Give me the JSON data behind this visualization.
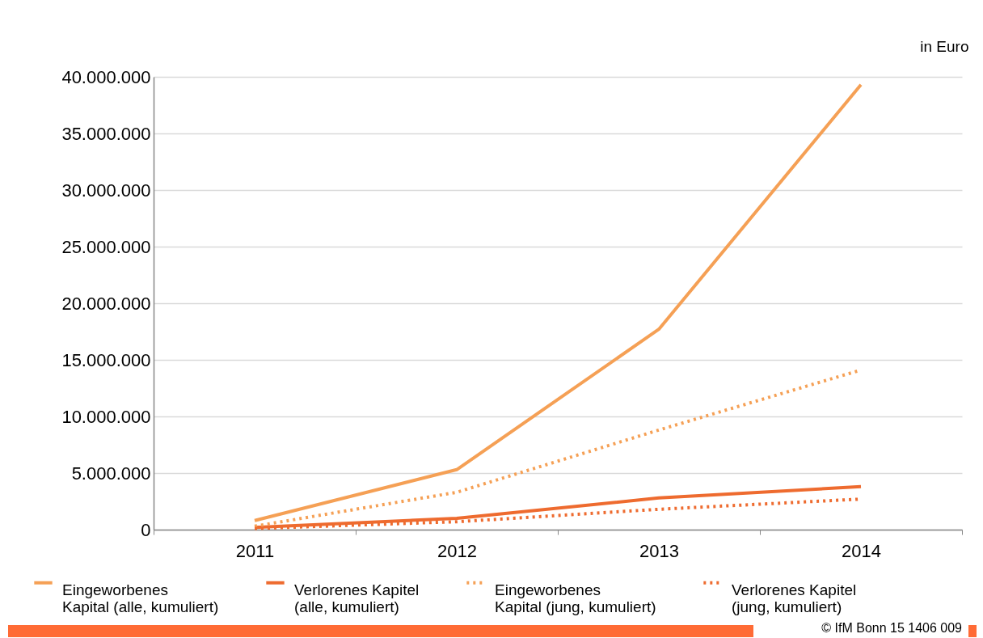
{
  "chart_data": {
    "type": "line",
    "ylabel": "in Euro",
    "categories": [
      "2011",
      "2012",
      "2013",
      "2014"
    ],
    "series": [
      {
        "name": "Eingeworbenes Kapital (alle, kumuliert)",
        "color": "#f5a055",
        "line_style": "solid",
        "values": [
          800000,
          5300000,
          17700000,
          39300000
        ]
      },
      {
        "name": "Verlorenes Kapitel (alle, kumuliert)",
        "color": "#ee6b2f",
        "line_style": "solid",
        "values": [
          200000,
          1000000,
          2800000,
          3800000
        ]
      },
      {
        "name": "Eingeworbenes Kapital (jung, kumuliert)",
        "color": "#f5a055",
        "line_style": "dotted",
        "values": [
          300000,
          3300000,
          8800000,
          14100000
        ]
      },
      {
        "name": "Verlorenes Kapitel (jung, kumuliert)",
        "color": "#ee6b2f",
        "line_style": "dotted",
        "values": [
          100000,
          700000,
          1800000,
          2700000
        ]
      }
    ],
    "ylim": [
      0,
      40000000
    ],
    "yticks": [
      0,
      {
        "value": 5000000,
        "label": "5.000.000"
      },
      {
        "value": 10000000,
        "label": "10.000.000"
      },
      {
        "value": 15000000,
        "label": "15.000.000"
      },
      {
        "value": 20000000,
        "label": "20.000.000"
      },
      {
        "value": 25000000,
        "label": "25.000.000"
      },
      {
        "value": 30000000,
        "label": "30.000.000"
      },
      {
        "value": 35000000,
        "label": "35.000.000"
      },
      {
        "value": 40000000,
        "label": "40.000.000"
      }
    ],
    "grid": "y",
    "legend": "bottom",
    "marker": "none",
    "annotations": [
      "© IfM Bonn 15 1406 009"
    ]
  }
}
